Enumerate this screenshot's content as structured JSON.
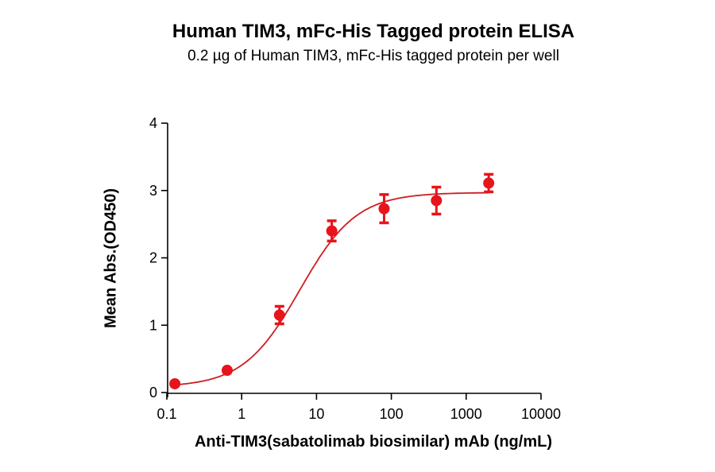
{
  "chart_data": {
    "type": "scatter",
    "title": "Human TIM3, mFc-His Tagged protein ELISA",
    "subtitle": "0.2 µg of Human TIM3, mFc-His tagged protein per well",
    "xlabel": "Anti-TIM3(sabatolimab biosimilar) mAb (ng/mL)",
    "ylabel": "Mean Abs.(OD450)",
    "xscale": "log",
    "xlim": [
      0.1,
      10000
    ],
    "ylim": [
      0,
      4
    ],
    "x_ticks": [
      "0.1",
      "1",
      "10",
      "100",
      "1000",
      "10000"
    ],
    "y_ticks": [
      "0",
      "1",
      "2",
      "3",
      "4"
    ],
    "grid": false,
    "legend": null,
    "fit": "4-parameter logistic sigmoid curve",
    "color": "#e8141b",
    "series": [
      {
        "name": "Human TIM3, mFc-His",
        "x": [
          0.128,
          0.64,
          3.2,
          16,
          80,
          400,
          2000
        ],
        "y": [
          0.13,
          0.33,
          1.15,
          2.4,
          2.73,
          2.85,
          3.11
        ],
        "error": [
          0.02,
          0.03,
          0.13,
          0.15,
          0.21,
          0.2,
          0.13
        ]
      }
    ]
  }
}
